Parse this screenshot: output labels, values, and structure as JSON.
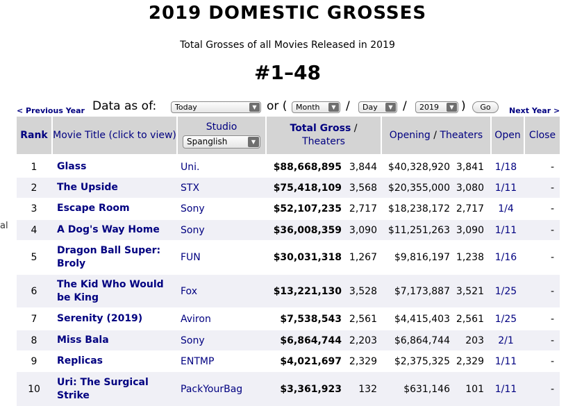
{
  "page": {
    "title": "2019 DOMESTIC GROSSES",
    "subtitle": "Total Grosses of all Movies Released in 2019",
    "range": "#1–48",
    "edge_char": "al"
  },
  "nav": {
    "prev_label": "< Previous Year",
    "next_label": "Next Year >"
  },
  "controls": {
    "data_as_of_label": "Data as of:",
    "date_select": "Today",
    "or_label": "or (",
    "month_select": "Month",
    "day_select": "Day",
    "year_select": "2019",
    "slash": "/",
    "close_paren": ")",
    "go_label": "Go"
  },
  "table": {
    "headers": {
      "rank": "Rank",
      "title": "Movie Title (click to view)",
      "studio": "Studio",
      "studio_filter": "Spanglish",
      "gross_bold": "Total Gross",
      "gross_sep": " / ",
      "gross_sub": "Theaters",
      "opening": "Opening",
      "opening_sep": " / ",
      "opening_sub": "Theaters",
      "open": "Open",
      "close": "Close"
    },
    "rows": [
      {
        "rank": "1",
        "title": "Glass",
        "studio": "Uni.",
        "gross": "$88,668,895",
        "gross_theaters": "3,844",
        "opening": "$40,328,920",
        "open_theaters": "3,841",
        "open": "1/18",
        "close": "-"
      },
      {
        "rank": "2",
        "title": "The Upside",
        "studio": "STX",
        "gross": "$75,418,109",
        "gross_theaters": "3,568",
        "opening": "$20,355,000",
        "open_theaters": "3,080",
        "open": "1/11",
        "close": "-"
      },
      {
        "rank": "3",
        "title": "Escape Room",
        "studio": "Sony",
        "gross": "$52,107,235",
        "gross_theaters": "2,717",
        "opening": "$18,238,172",
        "open_theaters": "2,717",
        "open": "1/4",
        "close": "-"
      },
      {
        "rank": "4",
        "title": "A Dog's Way Home",
        "studio": "Sony",
        "gross": "$36,008,359",
        "gross_theaters": "3,090",
        "opening": "$11,251,263",
        "open_theaters": "3,090",
        "open": "1/11",
        "close": "-"
      },
      {
        "rank": "5",
        "title": "Dragon Ball Super: Broly",
        "studio": "FUN",
        "gross": "$30,031,318",
        "gross_theaters": "1,267",
        "opening": "$9,816,197",
        "open_theaters": "1,238",
        "open": "1/16",
        "close": "-"
      },
      {
        "rank": "6",
        "title": "The Kid Who Would be King",
        "studio": "Fox",
        "gross": "$13,221,130",
        "gross_theaters": "3,528",
        "opening": "$7,173,887",
        "open_theaters": "3,521",
        "open": "1/25",
        "close": "-"
      },
      {
        "rank": "7",
        "title": "Serenity (2019)",
        "studio": "Aviron",
        "gross": "$7,538,543",
        "gross_theaters": "2,561",
        "opening": "$4,415,403",
        "open_theaters": "2,561",
        "open": "1/25",
        "close": "-"
      },
      {
        "rank": "8",
        "title": "Miss Bala",
        "studio": "Sony",
        "gross": "$6,864,744",
        "gross_theaters": "2,203",
        "opening": "$6,864,744",
        "open_theaters": "203",
        "open": "2/1",
        "close": "-"
      },
      {
        "rank": "9",
        "title": "Replicas",
        "studio": "ENTMP",
        "gross": "$4,021,697",
        "gross_theaters": "2,329",
        "opening": "$2,375,325",
        "open_theaters": "2,329",
        "open": "1/11",
        "close": "-"
      },
      {
        "rank": "10",
        "title": "Uri: The Surgical Strike",
        "studio": "PackYourBag",
        "gross": "$3,361,923",
        "gross_theaters": "132",
        "opening": "$631,146",
        "open_theaters": "101",
        "open": "1/11",
        "close": "-"
      }
    ]
  }
}
